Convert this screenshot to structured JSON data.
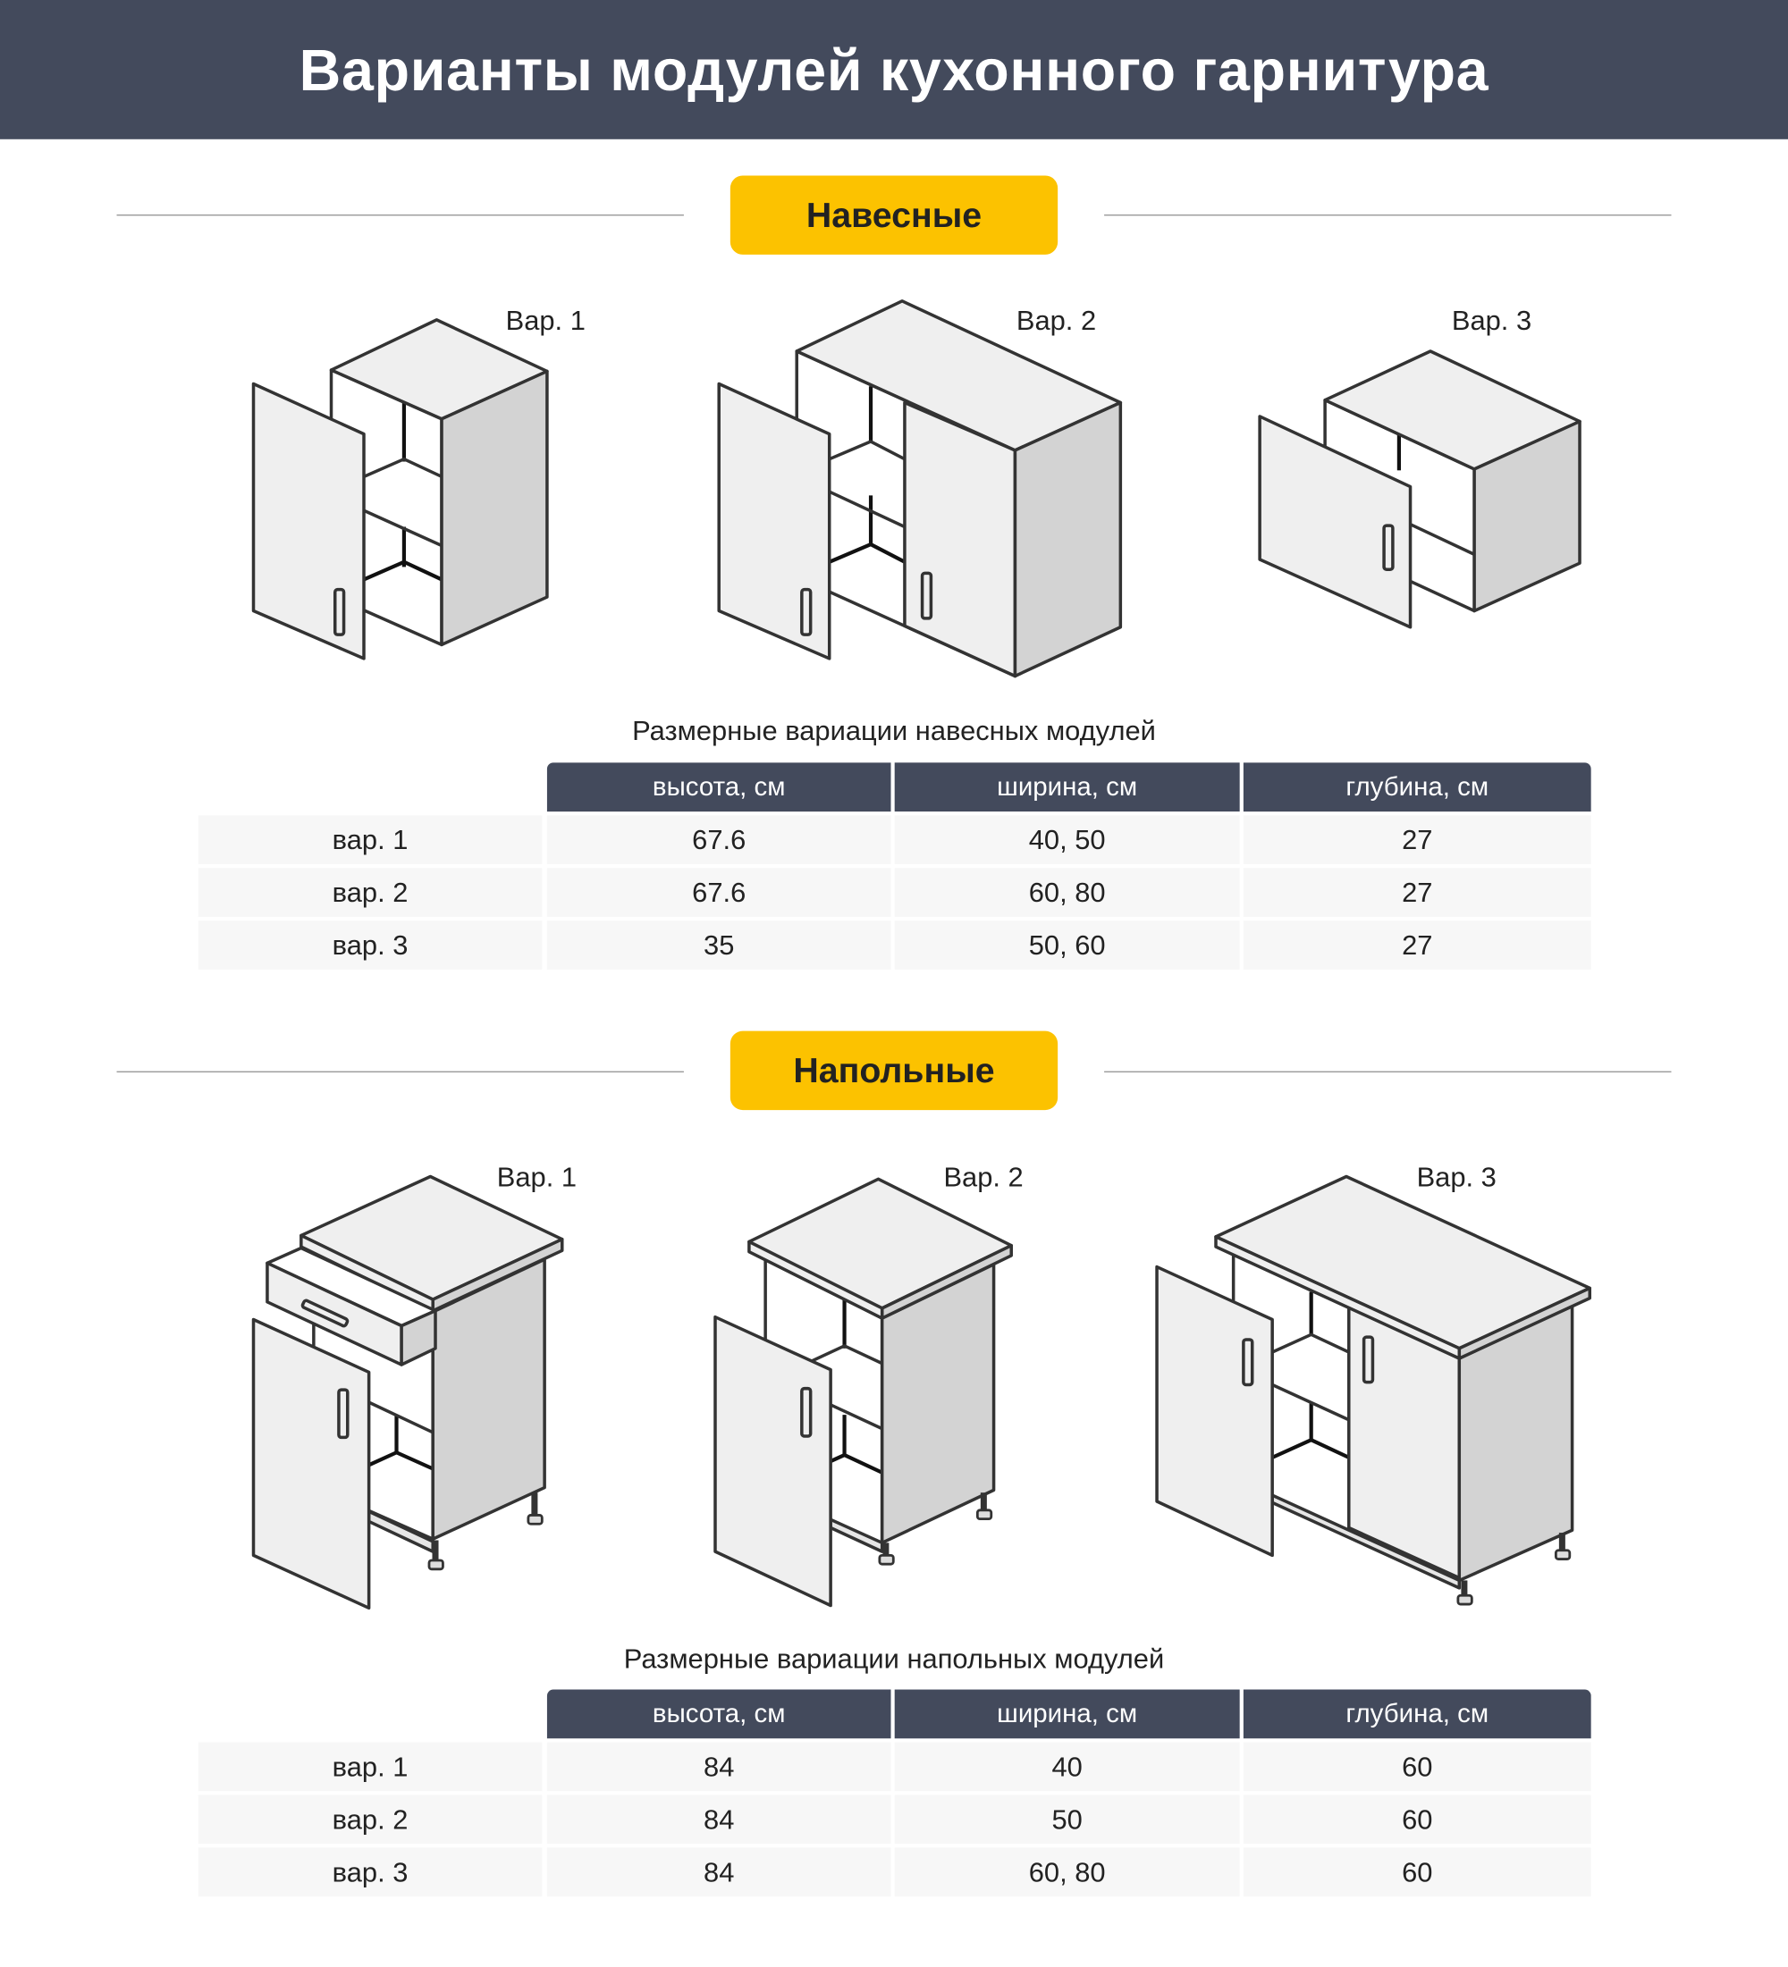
{
  "title": "Варианты модулей кухонного гарнитура",
  "sections": [
    {
      "heading": "Навесные",
      "variants": [
        "Вар. 1",
        "Вар. 2",
        "Вар. 3"
      ],
      "table": {
        "title": "Размерные вариации навесных модулей",
        "columns": [
          "высота, см",
          "ширина, см",
          "глубина, см"
        ],
        "rows": [
          {
            "label": "вар. 1",
            "values": [
              "67.6",
              "40, 50",
              "27"
            ]
          },
          {
            "label": "вар. 2",
            "values": [
              "67.6",
              "60, 80",
              "27"
            ]
          },
          {
            "label": "вар. 3",
            "values": [
              "35",
              "50, 60",
              "27"
            ]
          }
        ]
      }
    },
    {
      "heading": "Напольные",
      "variants": [
        "Вар. 1",
        "Вар. 2",
        "Вар. 3"
      ],
      "table": {
        "title": "Размерные вариации напольных модулей",
        "columns": [
          "высота, см",
          "ширина, см",
          "глубина, см"
        ],
        "rows": [
          {
            "label": "вар. 1",
            "values": [
              "84",
              "40",
              "60"
            ]
          },
          {
            "label": "вар. 2",
            "values": [
              "84",
              "50",
              "60"
            ]
          },
          {
            "label": "вар. 3",
            "values": [
              "84",
              "60, 80",
              "60"
            ]
          }
        ]
      }
    }
  ],
  "colors": {
    "header": "#434a5c",
    "accent": "#fcc200",
    "row": "#f7f7f7"
  }
}
